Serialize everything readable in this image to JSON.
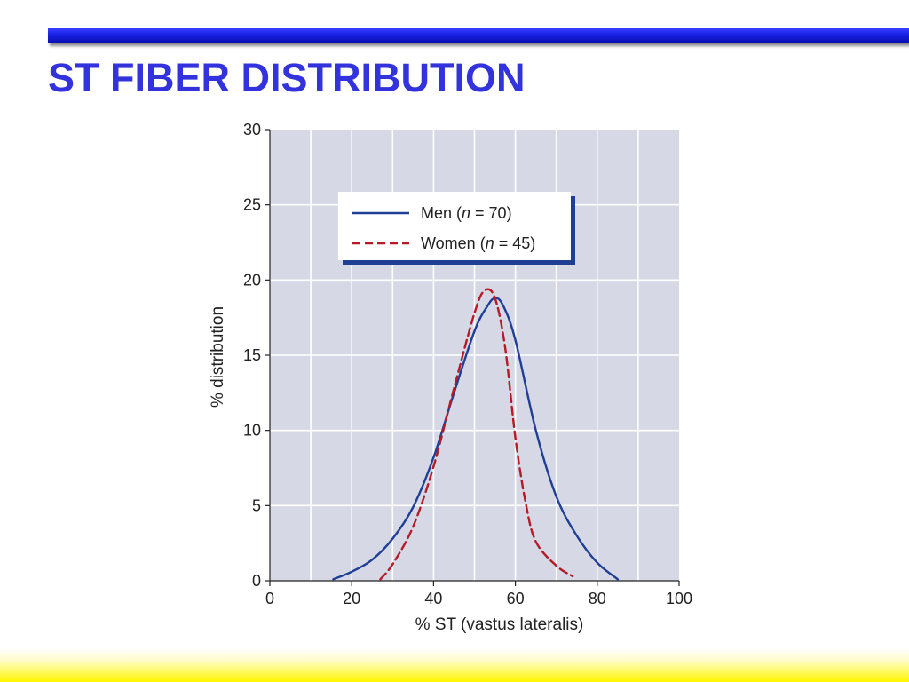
{
  "title": "ST FIBER DISTRIBUTION",
  "colors": {
    "plot_background": "#d6d8e6",
    "men_line": "#1f3f95",
    "women_line": "#b51a25",
    "title": "#3333dd",
    "legend_shadow": "#1f3f95"
  },
  "chart_data": {
    "type": "line",
    "xlabel": "% ST (vastus lateralis)",
    "ylabel": "% distribution",
    "xlim": [
      0,
      100
    ],
    "ylim": [
      0,
      30
    ],
    "xticks": [
      "0",
      "20",
      "40",
      "60",
      "80",
      "100"
    ],
    "yticks": [
      "0",
      "5",
      "10",
      "15",
      "20",
      "25",
      "30"
    ],
    "grid": true,
    "legend_position": "top-center",
    "series": [
      {
        "name_prefix": "Men (",
        "name_var": "n",
        "name_suffix": " = 70)",
        "style": "solid",
        "x": [
          15.5,
          20,
          25,
          30,
          35,
          40,
          45,
          50,
          53,
          55,
          57,
          60,
          65,
          70,
          75,
          80,
          85
        ],
        "y": [
          0.1,
          0.6,
          1.4,
          2.8,
          4.9,
          8.2,
          12.5,
          16.6,
          18.2,
          18.8,
          18.3,
          16.0,
          10.0,
          5.6,
          3.0,
          1.2,
          0.1
        ]
      },
      {
        "name_prefix": "Women (",
        "name_var": "n",
        "name_suffix": " = 45)",
        "style": "dashed",
        "x": [
          27,
          30,
          35,
          40,
          45,
          50,
          52.5,
          55,
          57.5,
          60,
          62.5,
          65,
          70,
          74
        ],
        "y": [
          0.1,
          1.1,
          3.6,
          7.6,
          12.8,
          17.8,
          19.3,
          18.8,
          15.5,
          9.5,
          5.2,
          2.6,
          1.0,
          0.3
        ]
      }
    ]
  }
}
